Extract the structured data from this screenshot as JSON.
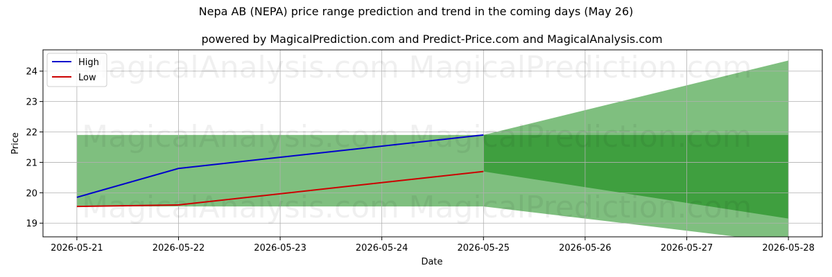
{
  "chart_data": {
    "type": "line",
    "title": "Nepa AB (NEPA) price range prediction and trend in the coming days (May 26)",
    "subtitle": "powered by MagicalPrediction.com and Predict-Price.com and MagicalAnalysis.com",
    "xlabel": "Date",
    "ylabel": "Price",
    "x_ticks": [
      "2026-05-21",
      "2026-05-22",
      "2026-05-23",
      "2026-05-24",
      "2026-05-25",
      "2026-05-26",
      "2026-05-27",
      "2026-05-28"
    ],
    "y_ticks": [
      19,
      20,
      21,
      22,
      23,
      24
    ],
    "xlim": [
      "2026-05-20 16:00",
      "2026-05-28 08:00"
    ],
    "ylim": [
      18.55,
      24.7
    ],
    "grid": true,
    "legend_position": "top-left",
    "series": [
      {
        "name": "High",
        "color": "#0000cc",
        "points": [
          [
            "2026-05-21",
            19.85
          ],
          [
            "2026-05-22",
            20.8
          ],
          [
            "2026-05-25",
            21.9
          ]
        ]
      },
      {
        "name": "Low",
        "color": "#cc0000",
        "points": [
          [
            "2026-05-21",
            19.55
          ],
          [
            "2026-05-22",
            19.6
          ],
          [
            "2026-05-25",
            20.7
          ]
        ]
      }
    ],
    "bands": [
      {
        "color": "#7fbf7f",
        "upper": [
          [
            "2026-05-21",
            21.9
          ],
          [
            "2026-05-25",
            21.9
          ],
          [
            "2026-05-28",
            24.35
          ]
        ],
        "lower": [
          [
            "2026-05-21",
            19.55
          ],
          [
            "2026-05-25",
            19.55
          ],
          [
            "2026-05-28",
            18.35
          ]
        ]
      },
      {
        "color": "#3f9f3f",
        "upper": [
          [
            "2026-05-25",
            21.9
          ],
          [
            "2026-05-28",
            21.9
          ]
        ],
        "lower": [
          [
            "2026-05-25",
            20.7
          ],
          [
            "2026-05-28",
            19.15
          ]
        ]
      }
    ],
    "watermarks": [
      "MagicalAnalysis.com",
      "MagicalPrediction.com"
    ]
  }
}
